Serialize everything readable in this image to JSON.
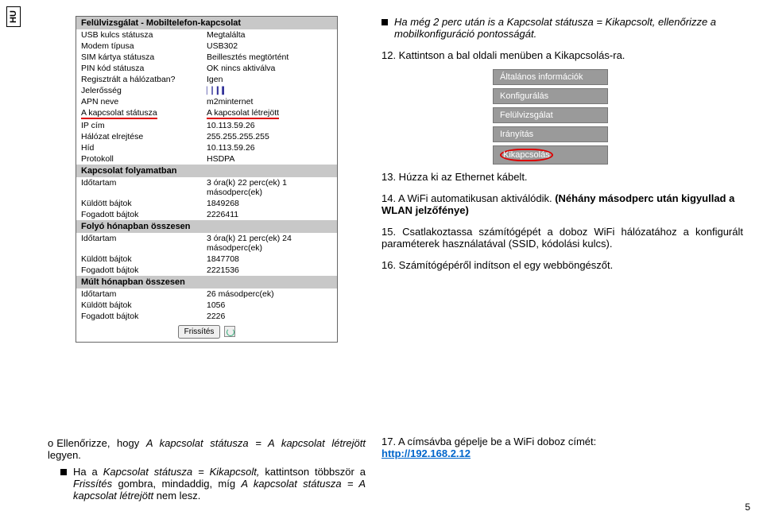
{
  "hu": "HU",
  "panel1": {
    "title": "Felülvizsgálat - Mobiltelefon-kapcsolat",
    "rows": [
      {
        "k": "USB kulcs státusza",
        "v": "Megtalálta"
      },
      {
        "k": "Modem típusa",
        "v": "USB302"
      },
      {
        "k": "SIM kártya státusza",
        "v": "Beillesztés megtörtént"
      },
      {
        "k": "PIN kód státusza",
        "v": "OK nincs aktiválva"
      },
      {
        "k": "Regisztrált a hálózatban?",
        "v": "Igen"
      },
      {
        "k": "Jelerősség",
        "v": ""
      },
      {
        "k": "APN neve",
        "v": "m2minternet"
      },
      {
        "k": "A kapcsolat státusza",
        "v": "A kapcsolat létrejött"
      },
      {
        "k": "IP cím",
        "v": "10.113.59.26"
      },
      {
        "k": "Hálózat elrejtése",
        "v": "255.255.255.255"
      },
      {
        "k": "Híd",
        "v": "10.113.59.26"
      },
      {
        "k": "Protokoll",
        "v": "HSDPA"
      }
    ]
  },
  "panel2": {
    "title": "Kapcsolat folyamatban",
    "rows": [
      {
        "k": "Időtartam",
        "v": "3 óra(k) 22 perc(ek) 1 másodperc(ek)"
      },
      {
        "k": "Küldött bájtok",
        "v": "1849268"
      },
      {
        "k": "Fogadott bájtok",
        "v": "2226411"
      }
    ]
  },
  "panel3": {
    "title": "Folyó hónapban összesen",
    "rows": [
      {
        "k": "Időtartam",
        "v": "3 óra(k) 21 perc(ek) 24 másodperc(ek)"
      },
      {
        "k": "Küldött bájtok",
        "v": "1847708"
      },
      {
        "k": "Fogadott bájtok",
        "v": "2221536"
      }
    ]
  },
  "panel4": {
    "title": "Múlt hónapban összesen",
    "rows": [
      {
        "k": "Időtartam",
        "v": "26 másodperc(ek)"
      },
      {
        "k": "Küldött bájtok",
        "v": "1056"
      },
      {
        "k": "Fogadott bájtok",
        "v": "2226"
      }
    ]
  },
  "refresh": "Frissítés",
  "top_note": "Ha még 2 perc után is a Kapcsolat státusza = Kikapcsolt, ellenőrizze a mobilkonfiguráció pontosságát.",
  "step12": "12. Kattintson a bal oldali menüben a Kikapcsolás-ra.",
  "menu": [
    "Általános információk",
    "Konfigurálás",
    "Felülvizsgálat",
    "Irányítás",
    "Kikapcsolás"
  ],
  "step13": "13. Húzza ki az Ethernet kábelt.",
  "step14a": "14. A WiFi automatikusan aktiválódik. ",
  "step14b": "(Néhány másodperc után kigyullad a WLAN jelzőfénye)",
  "step15": "15. Csatlakoztassa számítógépét a doboz WiFi hálózatához a konfigurált paraméterek használatával (SSID, kódolási kulcs).",
  "step16": "16. Számítógépéről indítson el egy webböngészőt.",
  "bl1a": "Ellenőrizze, hogy ",
  "bl1b": "A kapcsolat státusza = A kapcsolat létrejött",
  "bl1c": " legyen.",
  "bl2a": "Ha a ",
  "bl2b": "Kapcsolat státusza = Kikapcsolt,",
  "bl2c": " kattintson többször a ",
  "bl2d": "Frissítés",
  "bl2e": " gombra, mindaddig, míg ",
  "bl2f": "A kapcsolat státusza = A kapcsolat létrejött",
  "bl2g": " nem lesz.",
  "step17a": "17. A  címsávba  gépelje  be  a  WiFi  doboz  címét: ",
  "url": "http://192.168.2.12",
  "page": "5"
}
